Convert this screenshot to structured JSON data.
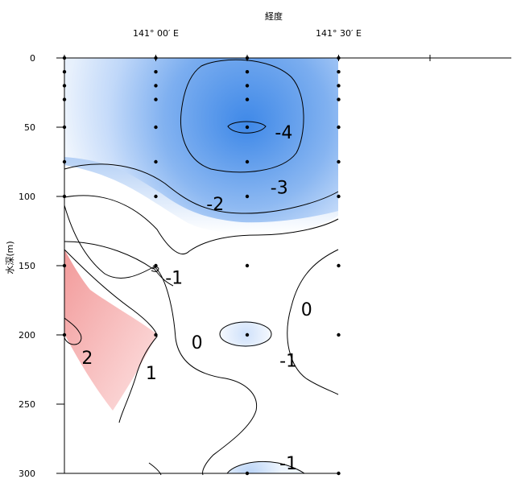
{
  "chart_data": {
    "type": "contour",
    "xlabel": "経度",
    "ylabel": "水深(m)",
    "x_tick_labels": [
      {
        "value": 0.0,
        "label": ""
      },
      {
        "value": 1.0,
        "label": "141° 00′ E"
      },
      {
        "value": 2.0,
        "label": ""
      },
      {
        "value": 3.0,
        "label": "141° 30′ E"
      },
      {
        "value": 4.0,
        "label": ""
      }
    ],
    "y_ticks": [
      0,
      50,
      100,
      150,
      200,
      250,
      300
    ],
    "ylim": [
      0,
      300
    ],
    "x_range": [
      0,
      5
    ],
    "data_extent_x": [
      0,
      3
    ],
    "y_inverted": true,
    "colors": {
      "negative": "#2f7fe6",
      "positive": "#f07a7a",
      "neutral": "#ffffff",
      "line": "#000000"
    },
    "stations": [
      {
        "x": 0,
        "depths": [
          0,
          10,
          20,
          30,
          50,
          75,
          100,
          150,
          200
        ]
      },
      {
        "x": 1,
        "depths": [
          0,
          10,
          20,
          30,
          50,
          75,
          100,
          150,
          200
        ]
      },
      {
        "x": 2,
        "depths": [
          0,
          10,
          20,
          30,
          50,
          75,
          100,
          150,
          200,
          300
        ]
      },
      {
        "x": 3,
        "depths": [
          0,
          10,
          20,
          30,
          50,
          75,
          100,
          150,
          200,
          300
        ]
      }
    ],
    "contour_labels": [
      {
        "text": "-4",
        "x": 2.4,
        "y": 58
      },
      {
        "text": "-3",
        "x": 2.35,
        "y": 98
      },
      {
        "text": "-2",
        "x": 1.65,
        "y": 110
      },
      {
        "text": "-1",
        "x": 1.2,
        "y": 163
      },
      {
        "text": "0",
        "x": 2.65,
        "y": 186
      },
      {
        "text": "0",
        "x": 1.45,
        "y": 210
      },
      {
        "text": "-1",
        "x": 2.45,
        "y": 223
      },
      {
        "text": "2",
        "x": 0.25,
        "y": 221
      },
      {
        "text": "1",
        "x": 0.95,
        "y": 232
      },
      {
        "text": "-1",
        "x": 2.45,
        "y": 297
      }
    ]
  }
}
